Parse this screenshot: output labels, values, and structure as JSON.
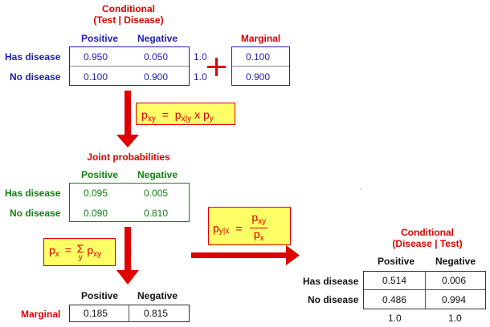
{
  "conditional_test": {
    "title_line1": "Conditional",
    "title_line2": "(Test | Disease)",
    "col_positive": "Positive",
    "col_negative": "Negative",
    "row1_label": "Has disease",
    "row2_label": "No disease",
    "r1c1": "0.950",
    "r1c2": "0.050",
    "r2c1": "0.100",
    "r2c2": "0.900",
    "row1_sum": "1.0",
    "row2_sum": "1.0"
  },
  "plus_sign": "+",
  "marginal_top": {
    "title": "Marginal",
    "v1": "0.100",
    "v2": "0.900"
  },
  "formula_joint": {
    "p1": "p",
    "s1": "xy",
    "eq": "=",
    "p2": "p",
    "s2": "x|y",
    "times": "x",
    "p3": "p",
    "s3": "y"
  },
  "joint": {
    "title": "Joint probabilities",
    "col_positive": "Positive",
    "col_negative": "Negative",
    "row1_label": "Has disease",
    "row2_label": "No disease",
    "r1c1": "0.095",
    "r1c2": "0.005",
    "r2c1": "0.090",
    "r2c2": "0.810"
  },
  "formula_marginal": {
    "p1": "p",
    "s1": "x",
    "eq": "=",
    "sigma": "Σ",
    "sigma_sub": "y",
    "p2": "p",
    "s2": "xy"
  },
  "formula_bayes": {
    "p1": "p",
    "s1": "y|x",
    "eq": "=",
    "num_p": "p",
    "num_s": "xy",
    "den_p": "p",
    "den_s": "x"
  },
  "marginal_bottom": {
    "label": "Marginal",
    "col_positive": "Positive",
    "col_negative": "Negative",
    "v1": "0.185",
    "v2": "0.815"
  },
  "conditional_disease": {
    "title_line1": "Conditional",
    "title_line2": "(Disease | Test)",
    "col_positive": "Positive",
    "col_negative": "Negative",
    "row1_label": "Has disease",
    "row2_label": "No disease",
    "r1c1": "0.514",
    "r1c2": "0.006",
    "r2c1": "0.486",
    "r2c2": "0.994",
    "col1_sum": "1.0",
    "col2_sum": "1.0"
  },
  "colors": {
    "red": "#e00000",
    "blue": "#1f1fb8",
    "green": "#128012",
    "formula_fill": "#ffff66"
  }
}
